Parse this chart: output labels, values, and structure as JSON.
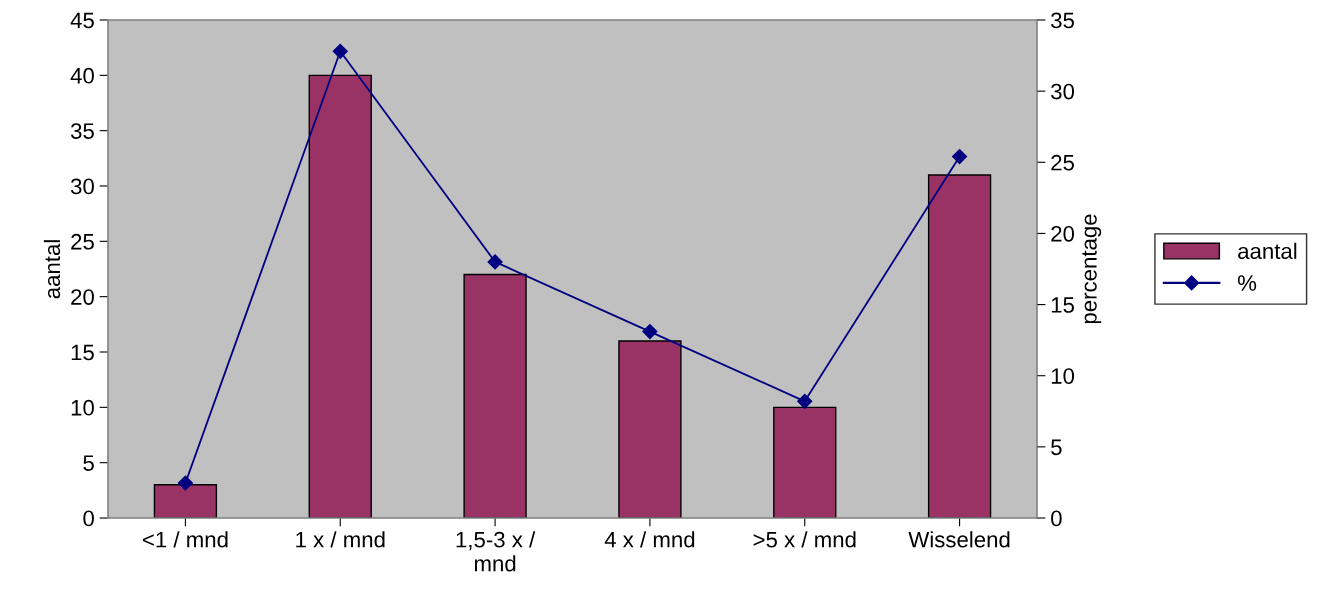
{
  "chart_data": {
    "type": "bar",
    "categories": [
      "<1 / mnd",
      "1 x / mnd",
      "1,5-3 x /\nmnd",
      "4 x / mnd",
      ">5 x / mnd",
      "Wisselend"
    ],
    "series": [
      {
        "name": "aantal",
        "color": "#993366",
        "values": [
          3,
          40,
          22,
          16,
          10,
          31
        ]
      },
      {
        "name": "%",
        "type": "line",
        "axis": "y2",
        "color": "#000080",
        "marker": "diamond",
        "line_style": "solid",
        "values": [
          2.46,
          32.8,
          18.0,
          13.1,
          8.2,
          25.4
        ]
      }
    ],
    "ylabel": "aantal",
    "y2label": "percentage",
    "ylim": [
      0,
      45
    ],
    "yticks": [
      0,
      5,
      10,
      15,
      20,
      25,
      30,
      35,
      40,
      45
    ],
    "y2lim": [
      0,
      35
    ],
    "y2ticks": [
      0,
      5,
      10,
      15,
      20,
      25,
      30,
      35
    ],
    "grid": false,
    "legend": "right"
  }
}
